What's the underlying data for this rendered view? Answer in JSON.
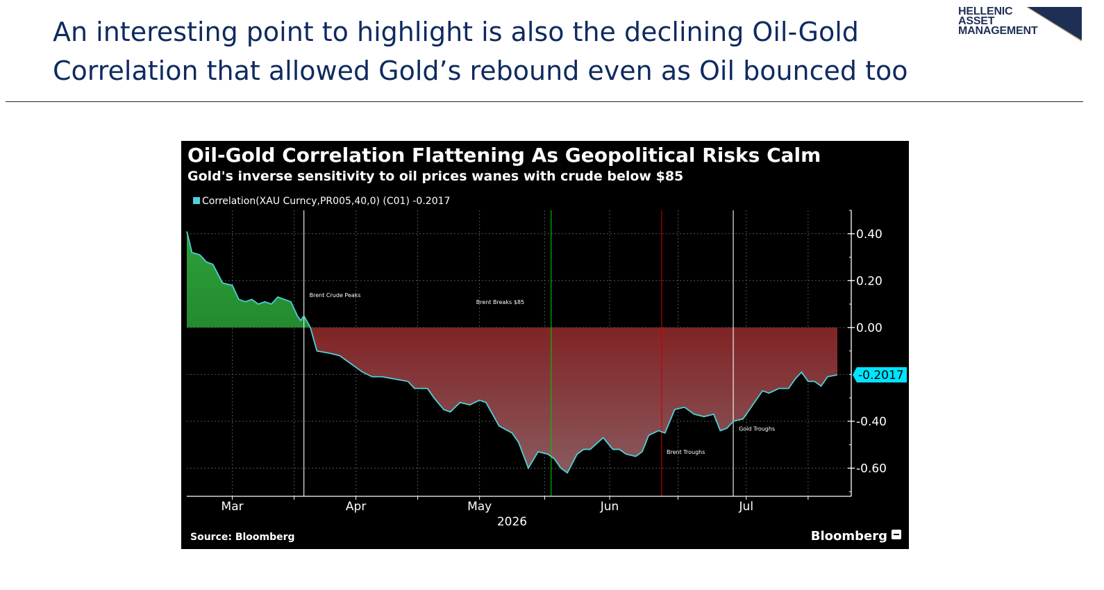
{
  "headline": {
    "line1": "An interesting point to highlight is also the declining Oil-Gold",
    "line2": "Correlation that allowed Gold’s rebound even as Oil bounced too"
  },
  "logo": {
    "line1": "HELLENIC",
    "line2": "ASSET",
    "line3": "MANAGEMENT",
    "colors": {
      "text": "#1e2f55",
      "navy": "#1e2f55",
      "gold": "#b8a27a"
    }
  },
  "chart_data": {
    "type": "area",
    "title": "Oil-Gold Correlation Flattening As Geopolitical Risks Calm",
    "subtitle": "Gold's inverse sensitivity to oil prices wanes with crude below $85",
    "legend": "Correlation(XAU Curncy,PR005,40,0) (C01) -0.2017",
    "legend_placement": "top-left",
    "last_value_label": "-0.2017",
    "source": "Source: Bloomberg",
    "brand": "Bloomberg",
    "x_axis": {
      "ticks": [
        "Mar",
        "Apr",
        "May",
        "Jun",
        "Jul"
      ],
      "tick_positions": [
        0.07,
        0.26,
        0.45,
        0.65,
        0.86
      ],
      "year_label": "2026"
    },
    "y_axis": {
      "position": "right",
      "ylim": [
        -0.72,
        0.5
      ],
      "ticks": [
        0.4,
        0.2,
        0.0,
        -0.4,
        -0.6
      ],
      "tick_labels": [
        "0.40",
        "0.20",
        "0.00",
        "-0.40",
        "-0.60"
      ],
      "gridlines": [
        0.4,
        0.2,
        0.0,
        -0.2,
        -0.4,
        -0.6
      ]
    },
    "x_range": [
      0,
      1
    ],
    "series": [
      {
        "points": [
          [
            0.0,
            0.41
          ],
          [
            0.008,
            0.32
          ],
          [
            0.02,
            0.31
          ],
          [
            0.03,
            0.28
          ],
          [
            0.04,
            0.27
          ],
          [
            0.055,
            0.19
          ],
          [
            0.07,
            0.18
          ],
          [
            0.08,
            0.12
          ],
          [
            0.09,
            0.11
          ],
          [
            0.1,
            0.12
          ],
          [
            0.11,
            0.1
          ],
          [
            0.12,
            0.11
          ],
          [
            0.13,
            0.1
          ],
          [
            0.14,
            0.13
          ],
          [
            0.15,
            0.12
          ],
          [
            0.16,
            0.11
          ],
          [
            0.17,
            0.05
          ],
          [
            0.175,
            0.03
          ],
          [
            0.18,
            0.05
          ],
          [
            0.19,
            0.0
          ],
          [
            0.2,
            -0.1
          ],
          [
            0.22,
            -0.11
          ],
          [
            0.235,
            -0.12
          ],
          [
            0.25,
            -0.15
          ],
          [
            0.27,
            -0.19
          ],
          [
            0.285,
            -0.21
          ],
          [
            0.3,
            -0.21
          ],
          [
            0.32,
            -0.22
          ],
          [
            0.34,
            -0.23
          ],
          [
            0.35,
            -0.26
          ],
          [
            0.37,
            -0.26
          ],
          [
            0.38,
            -0.3
          ],
          [
            0.395,
            -0.35
          ],
          [
            0.405,
            -0.36
          ],
          [
            0.42,
            -0.32
          ],
          [
            0.435,
            -0.33
          ],
          [
            0.45,
            -0.31
          ],
          [
            0.46,
            -0.32
          ],
          [
            0.48,
            -0.42
          ],
          [
            0.5,
            -0.45
          ],
          [
            0.51,
            -0.49
          ],
          [
            0.525,
            -0.6
          ],
          [
            0.54,
            -0.53
          ],
          [
            0.555,
            -0.54
          ],
          [
            0.565,
            -0.56
          ],
          [
            0.575,
            -0.6
          ],
          [
            0.585,
            -0.62
          ],
          [
            0.6,
            -0.54
          ],
          [
            0.61,
            -0.52
          ],
          [
            0.62,
            -0.52
          ],
          [
            0.64,
            -0.47
          ],
          [
            0.655,
            -0.52
          ],
          [
            0.665,
            -0.52
          ],
          [
            0.675,
            -0.54
          ],
          [
            0.69,
            -0.55
          ],
          [
            0.7,
            -0.53
          ],
          [
            0.71,
            -0.46
          ],
          [
            0.725,
            -0.44
          ],
          [
            0.735,
            -0.45
          ],
          [
            0.75,
            -0.35
          ],
          [
            0.765,
            -0.34
          ],
          [
            0.78,
            -0.37
          ],
          [
            0.795,
            -0.38
          ],
          [
            0.81,
            -0.37
          ],
          [
            0.82,
            -0.44
          ],
          [
            0.83,
            -0.43
          ],
          [
            0.84,
            -0.4
          ],
          [
            0.855,
            -0.39
          ],
          [
            0.87,
            -0.33
          ],
          [
            0.885,
            -0.27
          ],
          [
            0.895,
            -0.28
          ],
          [
            0.91,
            -0.26
          ],
          [
            0.925,
            -0.26
          ],
          [
            0.935,
            -0.22
          ],
          [
            0.945,
            -0.19
          ],
          [
            0.955,
            -0.23
          ],
          [
            0.965,
            -0.23
          ],
          [
            0.975,
            -0.25
          ],
          [
            0.985,
            -0.21
          ],
          [
            1.0,
            -0.2017
          ]
        ]
      }
    ],
    "event_lines": [
      {
        "x": 0.18,
        "label": "Brent Crude Peaks",
        "color": "#ffffff",
        "label_y": 0.13
      },
      {
        "x": 0.56,
        "label": "Brent Breaks $85",
        "color": "#00c800",
        "label_y": 0.1
      },
      {
        "x": 0.73,
        "label": "Brent Troughs",
        "color": "#c80000",
        "label_y": -0.54
      },
      {
        "x": 0.84,
        "label": "Gold Troughs",
        "color": "#ffffff",
        "label_y": -0.44
      }
    ],
    "colors": {
      "background": "#000000",
      "line": "#4fd1d9",
      "positive_fill": "#1a8a2a",
      "negative_fill": "#8b0000",
      "badge": "#00e5ff",
      "text": "#ffffff"
    }
  }
}
